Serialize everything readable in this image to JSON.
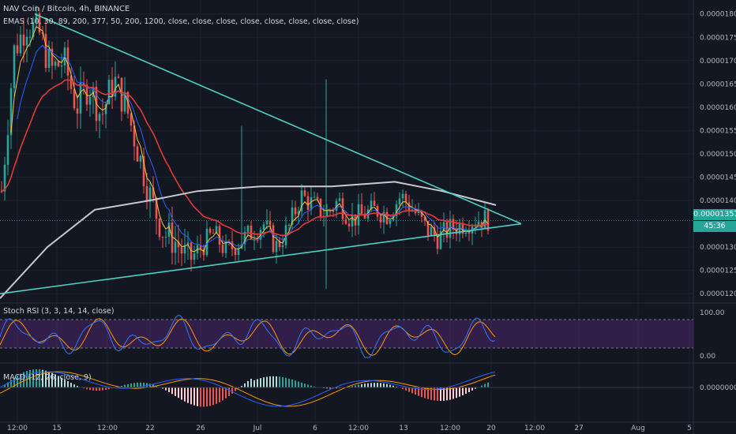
{
  "header": {
    "symbol_line": "NAV Coin / Bitcoin, 4h, BINANCE",
    "ema_line": "EMAS (10, 30, 89, 200, 377, 50, 200, 1200, close, close, close, close, close, close, close, close)"
  },
  "price_axis": {
    "ticks": [
      "0.00001800",
      "0.00001750",
      "0.00001700",
      "0.00001650",
      "0.00001600",
      "0.00001550",
      "0.00001500",
      "0.00001450",
      "0.00001400",
      "0.00001357",
      "0.00001300",
      "0.00001250",
      "0.00001200"
    ],
    "last_price_label": "0.00001357",
    "countdown_label": "45:36"
  },
  "stoch_panel": {
    "label": "Stoch RSI (3, 3, 14, 14, close)",
    "ticks": [
      "100.00",
      "0.00"
    ]
  },
  "macd_panel": {
    "label": "MACD (12, 26, close, 9)",
    "tick": "0.00000000"
  },
  "time_axis": {
    "labels": [
      "12:00",
      "15",
      "12:00",
      "22",
      "26",
      "Jul",
      "6",
      "12:00",
      "13",
      "12:00",
      "20",
      "12:00",
      "27",
      "Aug",
      "5"
    ]
  },
  "colors": {
    "background": "#131722",
    "up": "#26a69a",
    "down": "#ef5350",
    "trendline": "#4dd0c4",
    "ema_fast": "#f5c542",
    "ema_mid": "#2962ff",
    "ema_slow": "#e53935",
    "ema_long": "#c9c9cf",
    "stoch_k": "#3179f5",
    "stoch_d": "#ff9800",
    "stoch_band": "#6a2c91"
  },
  "chart_data": {
    "type": "candlestick",
    "price_range": [
      1.18e-05,
      1.83e-05
    ],
    "last_price": 1.357e-05,
    "x_dates": [
      "Jun 11 12:00",
      "Jun 15",
      "Jun 18 12:00",
      "Jun 22",
      "Jun 26",
      "Jul 1",
      "Jul 6",
      "Jul 9 12:00",
      "Jul 13",
      "Jul 16 12:00",
      "Jul 20",
      "Jul 23 12:00",
      "Jul 27",
      "Aug 1",
      "Aug 5"
    ],
    "close_path": [
      [
        0,
        1.42e-05
      ],
      [
        1,
        1.72e-05
      ],
      [
        2,
        1.78e-05
      ],
      [
        3,
        1.76e-05
      ],
      [
        4,
        1.68e-05
      ],
      [
        5,
        1.7e-05
      ],
      [
        6,
        1.6e-05
      ],
      [
        7,
        1.65e-05
      ],
      [
        8,
        1.58e-05
      ],
      [
        9,
        1.66e-05
      ],
      [
        10,
        1.6e-05
      ],
      [
        11,
        1.5e-05
      ],
      [
        12,
        1.4e-05
      ],
      [
        13,
        1.33e-05
      ],
      [
        14,
        1.31e-05
      ],
      [
        15,
        1.27e-05
      ],
      [
        16,
        1.3e-05
      ],
      [
        17,
        1.33e-05
      ],
      [
        18,
        1.29e-05
      ],
      [
        19,
        1.31e-05
      ],
      [
        20,
        1.33e-05
      ],
      [
        21,
        1.35e-05
      ],
      [
        22,
        1.3e-05
      ],
      [
        23,
        1.34e-05
      ],
      [
        24,
        1.41e-05
      ],
      [
        25,
        1.39e-05
      ],
      [
        26,
        1.37e-05
      ],
      [
        27,
        1.4e-05
      ],
      [
        28,
        1.36e-05
      ],
      [
        29,
        1.37e-05
      ],
      [
        30,
        1.38e-05
      ],
      [
        31,
        1.37e-05
      ],
      [
        32,
        1.41e-05
      ],
      [
        33,
        1.38e-05
      ],
      [
        34,
        1.34e-05
      ],
      [
        35,
        1.32e-05
      ],
      [
        36,
        1.34e-05
      ],
      [
        37,
        1.35e-05
      ],
      [
        38,
        1.36e-05
      ],
      [
        39,
        1.36e-05
      ]
    ],
    "trendlines": [
      {
        "from": [
          0,
          1.8e-05
        ],
        "to": [
          41,
          1.34e-05
        ]
      },
      {
        "from": [
          -1,
          1.22e-05
        ],
        "to": [
          41,
          1.34e-05
        ]
      }
    ]
  }
}
